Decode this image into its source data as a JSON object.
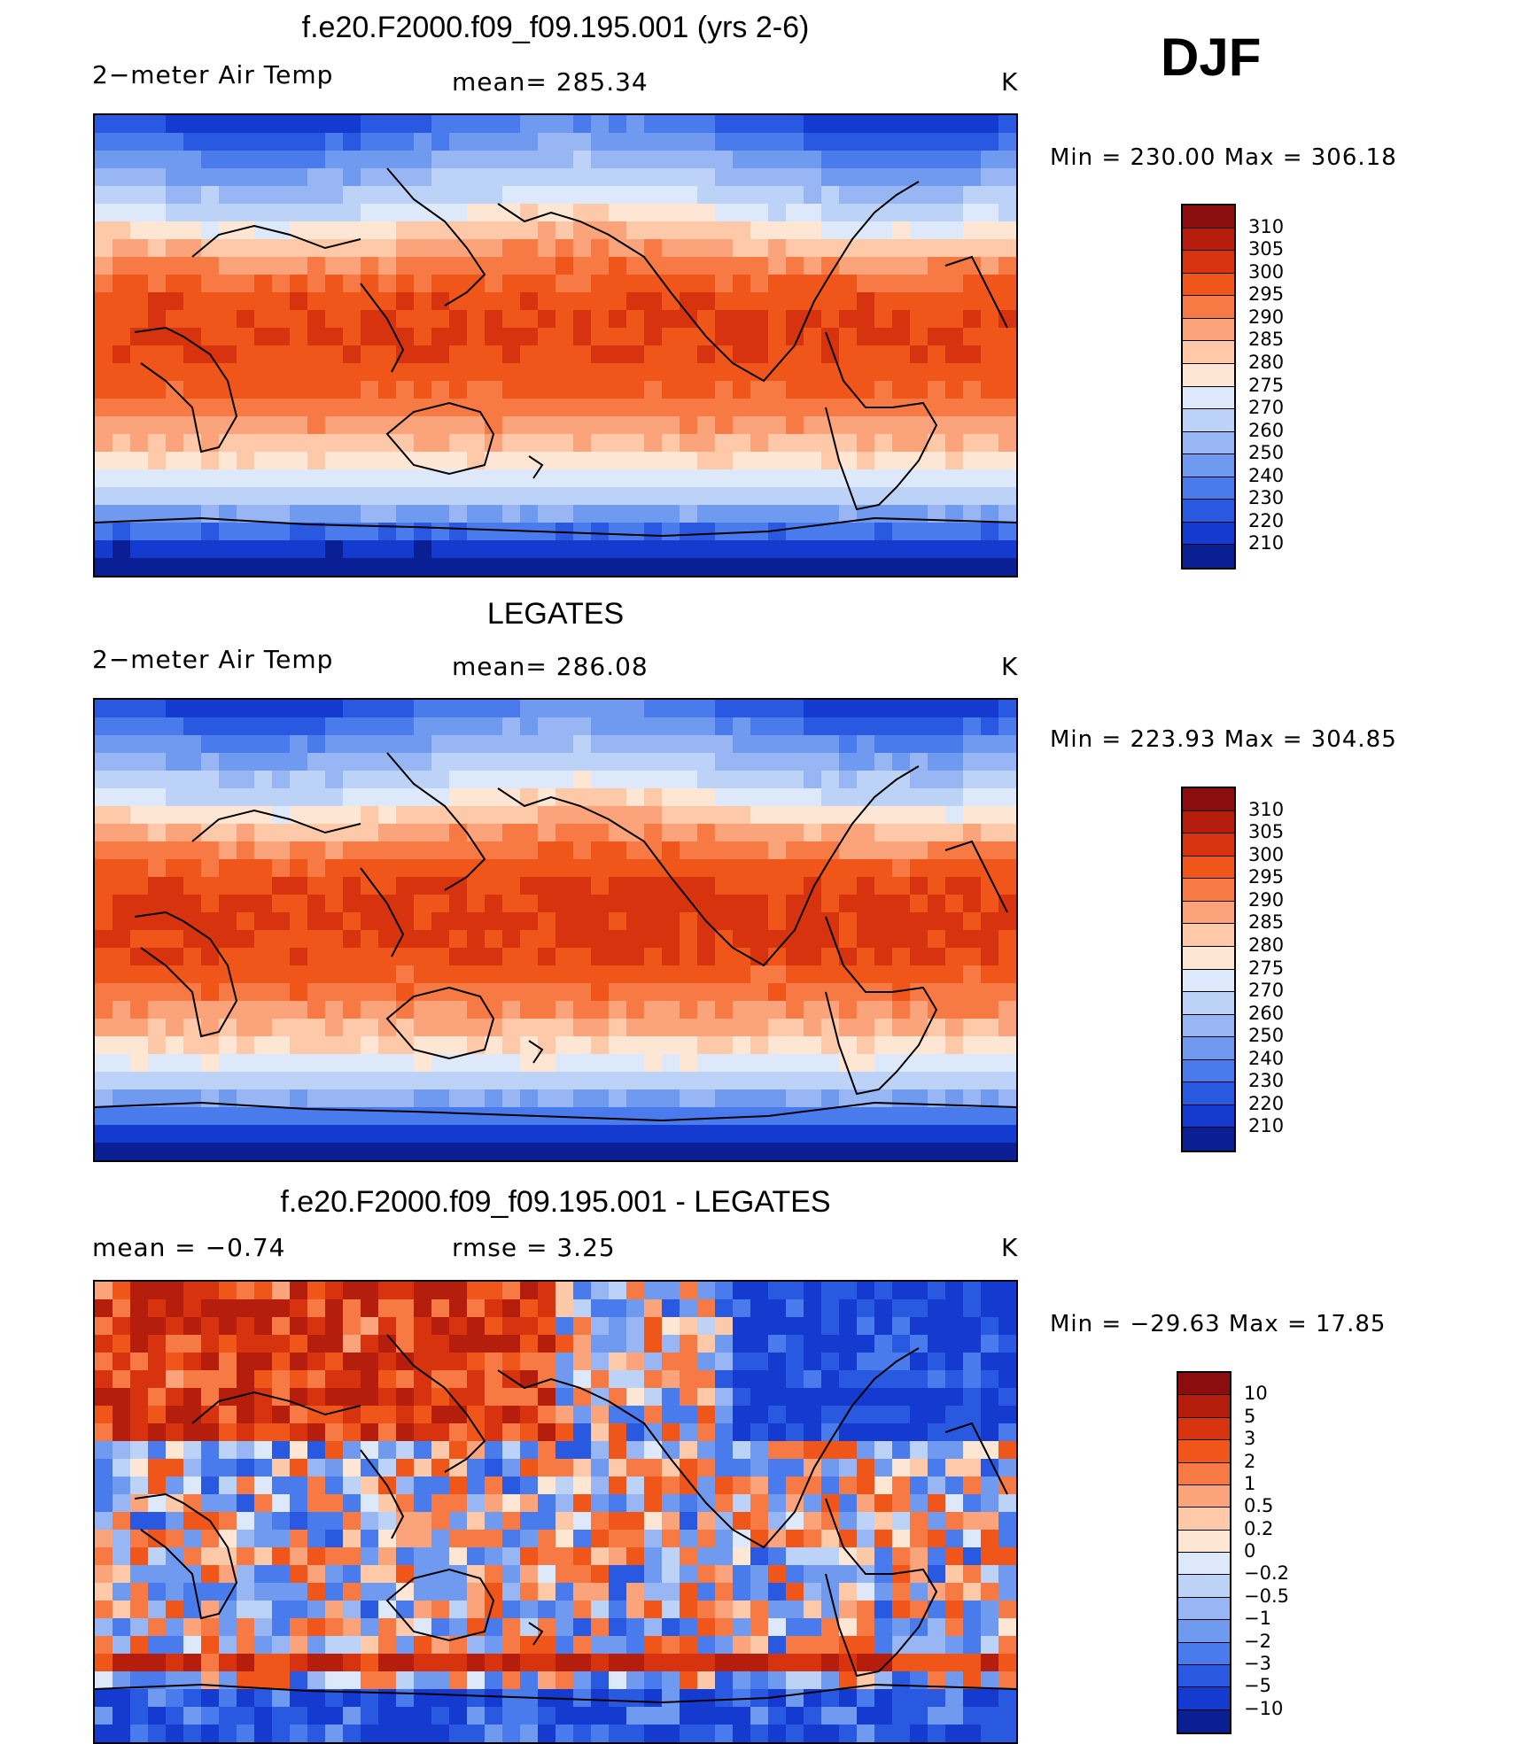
{
  "season": "DJF",
  "panels": [
    {
      "id": "model",
      "title": "f.e20.F2000.f09_f09.195.001 (yrs 2-6)",
      "left_label": "2−meter Air Temp",
      "center_label": "mean=  285.34",
      "units": "K",
      "minmax": "Min  =  230.00  Max  =  306.18",
      "type": "absolute"
    },
    {
      "id": "obs",
      "title": "LEGATES",
      "left_label": "2−meter Air Temp",
      "center_label": "mean=  286.08",
      "units": "K",
      "minmax": "Min  =  223.93  Max  =  304.85",
      "type": "absolute"
    },
    {
      "id": "diff",
      "title": "f.e20.F2000.f09_f09.195.001 - LEGATES",
      "left_label": "mean  =    −0.74",
      "center_label": "rmse  =     3.25",
      "units": "K",
      "minmax": "Min  =  −29.63  Max  =   17.85",
      "type": "difference"
    }
  ],
  "chart_data": [
    {
      "type": "heatmap",
      "title": "f.e20.F2000.f09_f09.195.001 (yrs 2-6)",
      "field": "2−meter Air Temp",
      "units": "K",
      "mean": 285.34,
      "min": 230.0,
      "max": 306.18,
      "colorbar_labels": [
        "310",
        "305",
        "300",
        "295",
        "290",
        "285",
        "280",
        "275",
        "270",
        "260",
        "250",
        "240",
        "230",
        "220",
        "210"
      ],
      "colorbar_colors": [
        "#8b0d0d",
        "#b51d0d",
        "#d8330f",
        "#f05519",
        "#f77a45",
        "#fba37b",
        "#fdc9a8",
        "#fee6d4",
        "#dde9fb",
        "#bcd2f7",
        "#97b6f3",
        "#709af0",
        "#4a7bec",
        "#2a59e1",
        "#143ad0",
        "#0a1f94"
      ]
    },
    {
      "type": "heatmap",
      "title": "LEGATES",
      "field": "2−meter Air Temp",
      "units": "K",
      "mean": 286.08,
      "min": 223.93,
      "max": 304.85,
      "colorbar_labels": [
        "310",
        "305",
        "300",
        "295",
        "290",
        "285",
        "280",
        "275",
        "270",
        "260",
        "250",
        "240",
        "230",
        "220",
        "210"
      ],
      "colorbar_colors": [
        "#8b0d0d",
        "#b51d0d",
        "#d8330f",
        "#f05519",
        "#f77a45",
        "#fba37b",
        "#fdc9a8",
        "#fee6d4",
        "#dde9fb",
        "#bcd2f7",
        "#97b6f3",
        "#709af0",
        "#4a7bec",
        "#2a59e1",
        "#143ad0",
        "#0a1f94"
      ]
    },
    {
      "type": "heatmap",
      "title": "f.e20.F2000.f09_f09.195.001 - LEGATES",
      "units": "K",
      "mean": -0.74,
      "rmse": 3.25,
      "min": -29.63,
      "max": 17.85,
      "colorbar_labels": [
        "10",
        "5",
        "3",
        "2",
        "1",
        "0.5",
        "0.2",
        "0",
        "−0.2",
        "−0.5",
        "−1",
        "−2",
        "−3",
        "−5",
        "−10"
      ],
      "colorbar_colors": [
        "#8b0d0d",
        "#b51d0d",
        "#d8330f",
        "#f05519",
        "#f77a45",
        "#fba37b",
        "#fdc9a8",
        "#fee6d4",
        "#dde9fb",
        "#bcd2f7",
        "#97b6f3",
        "#709af0",
        "#4a7bec",
        "#2a59e1",
        "#143ad0",
        "#0a1f94"
      ]
    }
  ]
}
